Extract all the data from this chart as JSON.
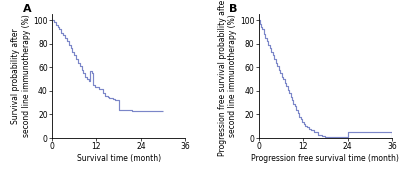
{
  "panel_A": {
    "label": "A",
    "xlabel": "Survival time (month)",
    "ylabel": "Survival probability after\nsecond line immunotherapy (%)",
    "xlim": [
      0,
      36
    ],
    "ylim": [
      0,
      105
    ],
    "xticks": [
      0,
      12,
      24,
      36
    ],
    "yticks": [
      0,
      20,
      40,
      60,
      80,
      100
    ],
    "curve_color": "#7b86c8",
    "curve_times": [
      0,
      0.5,
      1,
      1.5,
      2,
      2.5,
      3,
      3.5,
      4,
      4.5,
      5,
      5.5,
      6,
      6.5,
      7,
      7.5,
      8,
      8.5,
      9,
      9.5,
      10,
      10.3,
      10.8,
      11.2,
      11.5,
      12.0,
      12.3,
      12.8,
      13.2,
      13.8,
      14.2,
      15.0,
      15.5,
      16.0,
      16.5,
      17.0,
      17.5,
      18.0,
      21.0,
      21.5,
      22.0,
      23.0,
      30.0
    ],
    "curve_probs": [
      100,
      98,
      96,
      94,
      92,
      89,
      87,
      85,
      82,
      79,
      76,
      73,
      70,
      67,
      64,
      61,
      58,
      55,
      52,
      50,
      48,
      57,
      55,
      45,
      43,
      43,
      43,
      42,
      42,
      38,
      36,
      35,
      34,
      34,
      33,
      32,
      32,
      24,
      24,
      23,
      23,
      23,
      23
    ]
  },
  "panel_B": {
    "label": "B",
    "xlabel": "Progression free survival time (month)",
    "ylabel": "Progression free survival probability after\nsecond line immunotherapy (%)",
    "xlim": [
      0,
      36
    ],
    "ylim": [
      0,
      105
    ],
    "xticks": [
      0,
      12,
      24,
      36
    ],
    "yticks": [
      0,
      20,
      40,
      60,
      80,
      100
    ],
    "curve_color": "#7b86c8",
    "curve_times": [
      0,
      0.3,
      0.6,
      1.0,
      1.4,
      1.8,
      2.2,
      2.6,
      3.0,
      3.4,
      3.8,
      4.2,
      4.6,
      5.0,
      5.4,
      5.8,
      6.2,
      6.6,
      7.0,
      7.4,
      7.8,
      8.2,
      8.6,
      9.0,
      9.4,
      9.8,
      10.2,
      10.6,
      11.0,
      11.4,
      11.8,
      12.2,
      12.6,
      13.0,
      13.5,
      14.0,
      15.0,
      16.0,
      17.0,
      18.0,
      24.0,
      30.0,
      36.0
    ],
    "curve_probs": [
      100,
      97,
      94,
      92,
      88,
      85,
      82,
      79,
      76,
      73,
      70,
      67,
      64,
      61,
      58,
      55,
      52,
      50,
      47,
      44,
      41,
      38,
      35,
      32,
      29,
      27,
      24,
      21,
      18,
      16,
      14,
      12,
      10,
      9,
      8,
      7,
      5,
      3,
      2,
      1,
      5,
      5,
      0
    ]
  },
  "background_color": "#ffffff",
  "spine_color": "#000000",
  "label_fontsize": 5.5,
  "tick_fontsize": 5.5,
  "panel_label_fontsize": 8
}
